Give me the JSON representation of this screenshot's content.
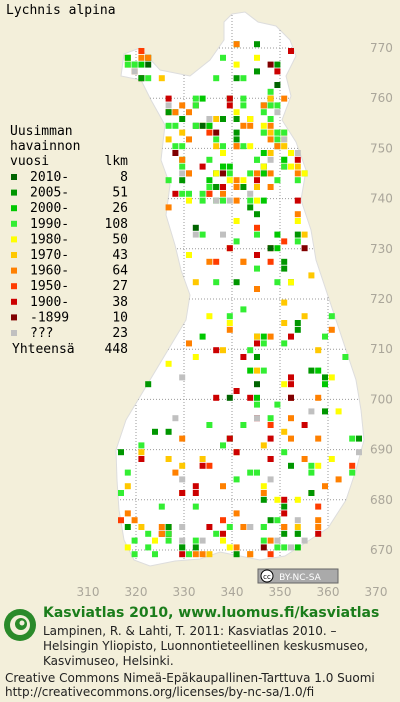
{
  "map": {
    "title": "Lychnis alpina",
    "xticks": [
      310,
      320,
      330,
      340,
      350,
      360,
      370
    ],
    "yticks": [
      770,
      760,
      750,
      740,
      730,
      720,
      710,
      700,
      690,
      680,
      670
    ],
    "legend": {
      "header": [
        "Uusimman",
        "havainnon",
        "vuosi"
      ],
      "count_header": "lkm",
      "rows": [
        {
          "label": "2010-",
          "count": 8,
          "color": "#006400"
        },
        {
          "label": "2005-",
          "count": 51,
          "color": "#009600"
        },
        {
          "label": "2000-",
          "count": 26,
          "color": "#00c800"
        },
        {
          "label": "1990-",
          "count": 108,
          "color": "#33ee33"
        },
        {
          "label": "1980-",
          "count": 50,
          "color": "#ffff00"
        },
        {
          "label": "1970-",
          "count": 43,
          "color": "#ffc800"
        },
        {
          "label": "1960-",
          "count": 64,
          "color": "#ff8000"
        },
        {
          "label": "1950-",
          "count": 27,
          "color": "#ff3c00"
        },
        {
          "label": "1900-",
          "count": 38,
          "color": "#cc0000"
        },
        {
          "label": "-1899",
          "count": 10,
          "color": "#800000"
        },
        {
          "label": "???",
          "count": 23,
          "color": "#c0c0c0"
        }
      ],
      "total_label": "Yhteensä",
      "total": 448
    },
    "license_badge": "BY-NC-SA"
  },
  "footer": {
    "heading": "Kasviatlas 2010, www.luomus.fi/kasviatlas",
    "citation": [
      "Lampinen, R. & Lahti, T. 2011: Kasviatlas 2010. –",
      "Helsingin Yliopisto, Luonnontieteellinen keskusmuseo,",
      "Kasvimuseo, Helsinki."
    ],
    "license": [
      "Creative Commons Nimeä-Epäkaupallinen-Tarttuva 1.0 Suomi",
      "http://creativecommons.org/licenses/by-nc-sa/1.0/fi"
    ]
  }
}
